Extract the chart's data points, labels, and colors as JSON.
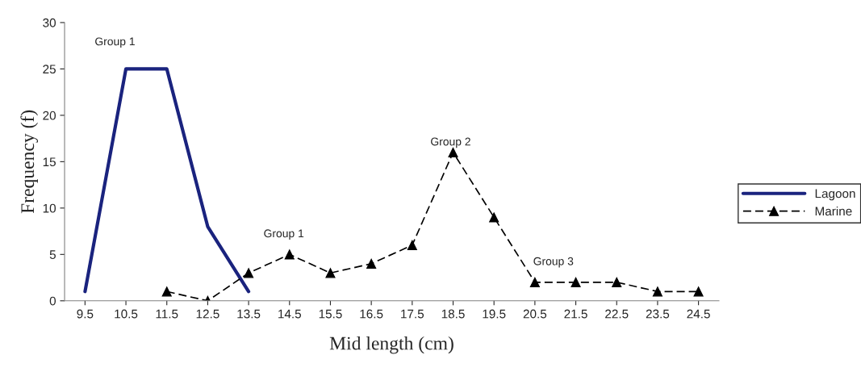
{
  "chart_data": {
    "type": "line",
    "categories": [
      "9.5",
      "10.5",
      "11.5",
      "12.5",
      "13.5",
      "14.5",
      "15.5",
      "16.5",
      "17.5",
      "18.5",
      "19.5",
      "20.5",
      "21.5",
      "22.5",
      "23.5",
      "24.5"
    ],
    "series": [
      {
        "name": "Lagoon",
        "color": "#1a237e",
        "marker": "none",
        "line_style": "solid",
        "values": [
          1,
          25,
          25,
          8,
          1,
          null,
          null,
          null,
          null,
          null,
          null,
          null,
          null,
          null,
          null,
          null
        ]
      },
      {
        "name": "Marine",
        "color": "#000000",
        "marker": "triangle",
        "line_style": "dashed",
        "values": [
          null,
          null,
          1,
          0,
          3,
          5,
          3,
          4,
          6,
          16,
          9,
          2,
          2,
          2,
          1,
          1
        ]
      }
    ],
    "xlabel": "Mid length (cm)",
    "ylabel": "Frequency (f)",
    "ylim": [
      0,
      30
    ],
    "yticks": [
      0,
      5,
      10,
      15,
      20,
      25,
      30
    ],
    "grid": false,
    "legend": "right",
    "annotations": [
      "Group 1",
      "Group 1",
      "Group 2",
      "Group 3"
    ]
  }
}
